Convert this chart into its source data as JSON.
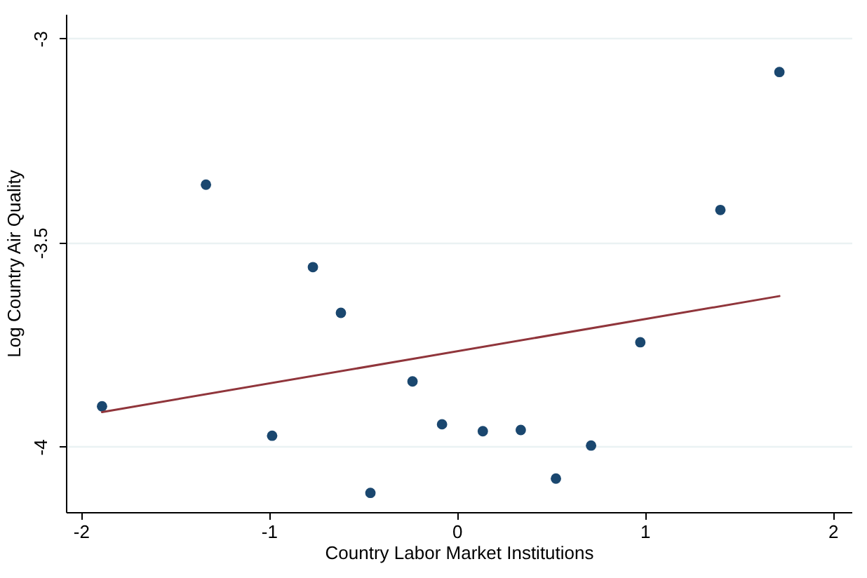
{
  "chart_data": {
    "type": "scatter",
    "xlabel": "Country Labor Market Institutions",
    "ylabel": "Log Country Air Quality",
    "xlim": [
      -2.08,
      2.1
    ],
    "xticks": [
      -2,
      -1,
      0,
      1,
      2
    ],
    "ylim": [
      -4.16,
      -2.94
    ],
    "yticks": [
      -4,
      -3.5,
      -3
    ],
    "grid": "y",
    "series": [
      {
        "marker": "circle",
        "color": "#1a476f",
        "x": [
          -1.888,
          -1.335,
          -0.766,
          -0.617,
          -0.983,
          -0.46,
          -0.236,
          -0.079,
          0.138,
          0.34,
          0.527,
          0.714,
          0.976,
          1.402,
          1.716
        ],
        "values": [
          -3.901,
          -3.358,
          -3.56,
          -3.672,
          -3.973,
          -4.113,
          -3.84,
          -3.945,
          -3.962,
          -3.959,
          -4.078,
          -3.997,
          -3.744,
          -3.42,
          -3.082
        ]
      },
      {
        "type": "line",
        "color": "#90353b",
        "x": [
          -1.888,
          1.716
        ],
        "values": [
          -3.915,
          -3.631
        ]
      }
    ]
  }
}
